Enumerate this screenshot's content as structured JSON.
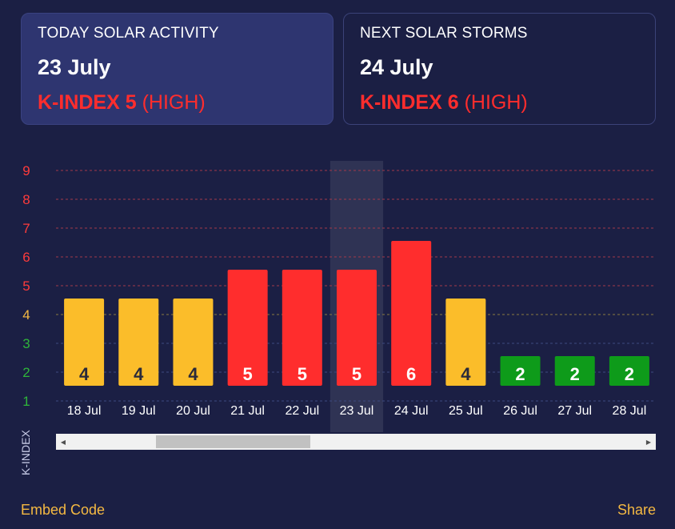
{
  "today_card": {
    "title": "TODAY SOLAR ACTIVITY",
    "date": "23 July",
    "k_label": "K-INDEX 5",
    "level": "(HIGH)"
  },
  "next_card": {
    "title": "NEXT SOLAR STORMS",
    "date": "24 July",
    "k_label": "K-INDEX 6",
    "level": "(HIGH)"
  },
  "chart_data": {
    "type": "bar",
    "categories": [
      "18 Jul",
      "19 Jul",
      "20 Jul",
      "21 Jul",
      "22 Jul",
      "23 Jul",
      "24 Jul",
      "25 Jul",
      "26 Jul",
      "27 Jul",
      "28 Jul"
    ],
    "values": [
      4,
      4,
      4,
      5,
      5,
      5,
      6,
      4,
      2,
      2,
      2
    ],
    "ylabel": "K-INDEX",
    "yticks": [
      1,
      2,
      3,
      4,
      5,
      6,
      7,
      8,
      9
    ],
    "ylim": [
      1,
      9
    ],
    "highlighted_category": "23 Jul",
    "colors": {
      "low": "#0e9b1a",
      "moderate": "#fbbd2a",
      "high": "#ff2d2d",
      "tick_low": "#2fb53a",
      "tick_moderate": "#f5b942",
      "tick_high": "#ff3b3b"
    },
    "grid": true
  },
  "scrollbar": {
    "position": 0.15,
    "visible_fraction": 0.27
  },
  "footer": {
    "embed_label": "Embed Code",
    "share_label": "Share"
  }
}
